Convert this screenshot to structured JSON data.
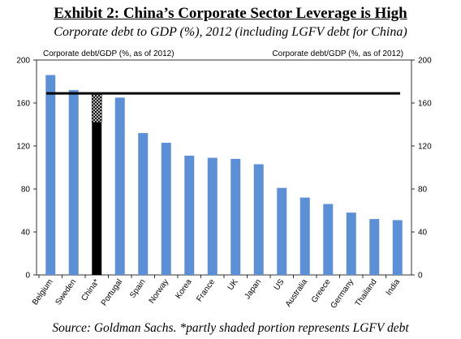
{
  "exhibit_title": "Exhibit 2: China’s Corporate Sector Leverage is High",
  "exhibit_subtitle": "Corporate debt to GDP (%), 2012 (including LGFV debt for China)",
  "source_note": "Source: Goldman Sachs. *partly shaded portion represents LGFV debt",
  "colors": {
    "bar": "#5b8fd6",
    "china_bar": "#000000",
    "reference_line": "#000000"
  },
  "chart_data": {
    "type": "bar",
    "left_axis_label": "Corporate debt/GDP (%,  as of 2012)",
    "right_axis_label": "Corporate debt/GDP (%,  as of 2012)",
    "ylim": [
      0,
      200
    ],
    "yticks": [
      0,
      40,
      80,
      120,
      160,
      200
    ],
    "categories": [
      "Belgium",
      "Sweden",
      "China*",
      "Portugal",
      "Spain",
      "Norway",
      "Korea",
      "France",
      "UK",
      "Japan",
      "US",
      "Australia",
      "Greece",
      "Germany",
      "Thailand",
      "India"
    ],
    "values": [
      186,
      172,
      169,
      165,
      132,
      123,
      111,
      109,
      108,
      103,
      81,
      72,
      66,
      58,
      52,
      51
    ],
    "china_lgfv_portion": {
      "category": "China*",
      "from": 142,
      "to": 169
    },
    "reference_line_value": 169
  }
}
